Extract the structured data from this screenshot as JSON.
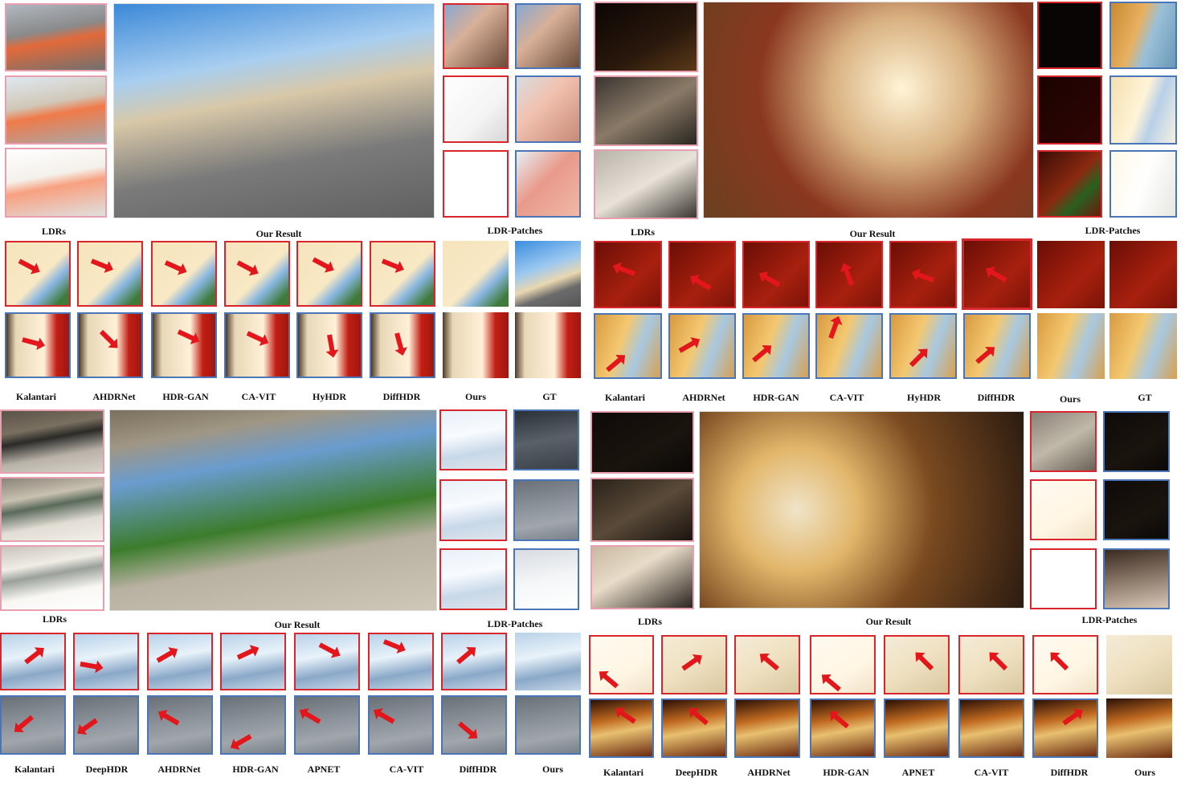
{
  "panels": {
    "top_left": {
      "labels": {
        "ldrs": "LDRs",
        "result": "Our Result",
        "patches": "LDR-Patches"
      },
      "methods": [
        "Kalantari",
        "AHDRNet",
        "HDR-GAN",
        "CA-VIT",
        "HyHDR",
        "DiffHDR",
        "Ours",
        "GT"
      ]
    },
    "top_right": {
      "labels": {
        "ldrs": "LDRs",
        "result": "Our Result",
        "patches": "LDR-Patches"
      },
      "methods": [
        "Kalantari",
        "AHDRNet",
        "HDR-GAN",
        "CA-VIT",
        "HyHDR",
        "DiffHDR",
        "Ours",
        "GT"
      ]
    },
    "bottom_left": {
      "labels": {
        "ldrs": "LDRs",
        "result": "Our Result",
        "patches": "LDR-Patches"
      },
      "methods": [
        "Kalantari",
        "DeepHDR",
        "AHDRNet",
        "HDR-GAN",
        "APNET",
        "CA-VIT",
        "DiffHDR",
        "Ours"
      ]
    },
    "bottom_right": {
      "labels": {
        "ldrs": "LDRs",
        "result": "Our Result",
        "patches": "LDR-Patches"
      },
      "methods": [
        "Kalantari",
        "DeepHDR",
        "AHDRNet",
        "HDR-GAN",
        "APNET",
        "CA-VIT",
        "DiffHDR",
        "Ours"
      ]
    }
  },
  "colors": {
    "red_frame": "#d8262c",
    "blue_frame": "#4a76b8",
    "pink_frame": "#e8a0b0",
    "arrow": "#e3161b"
  }
}
